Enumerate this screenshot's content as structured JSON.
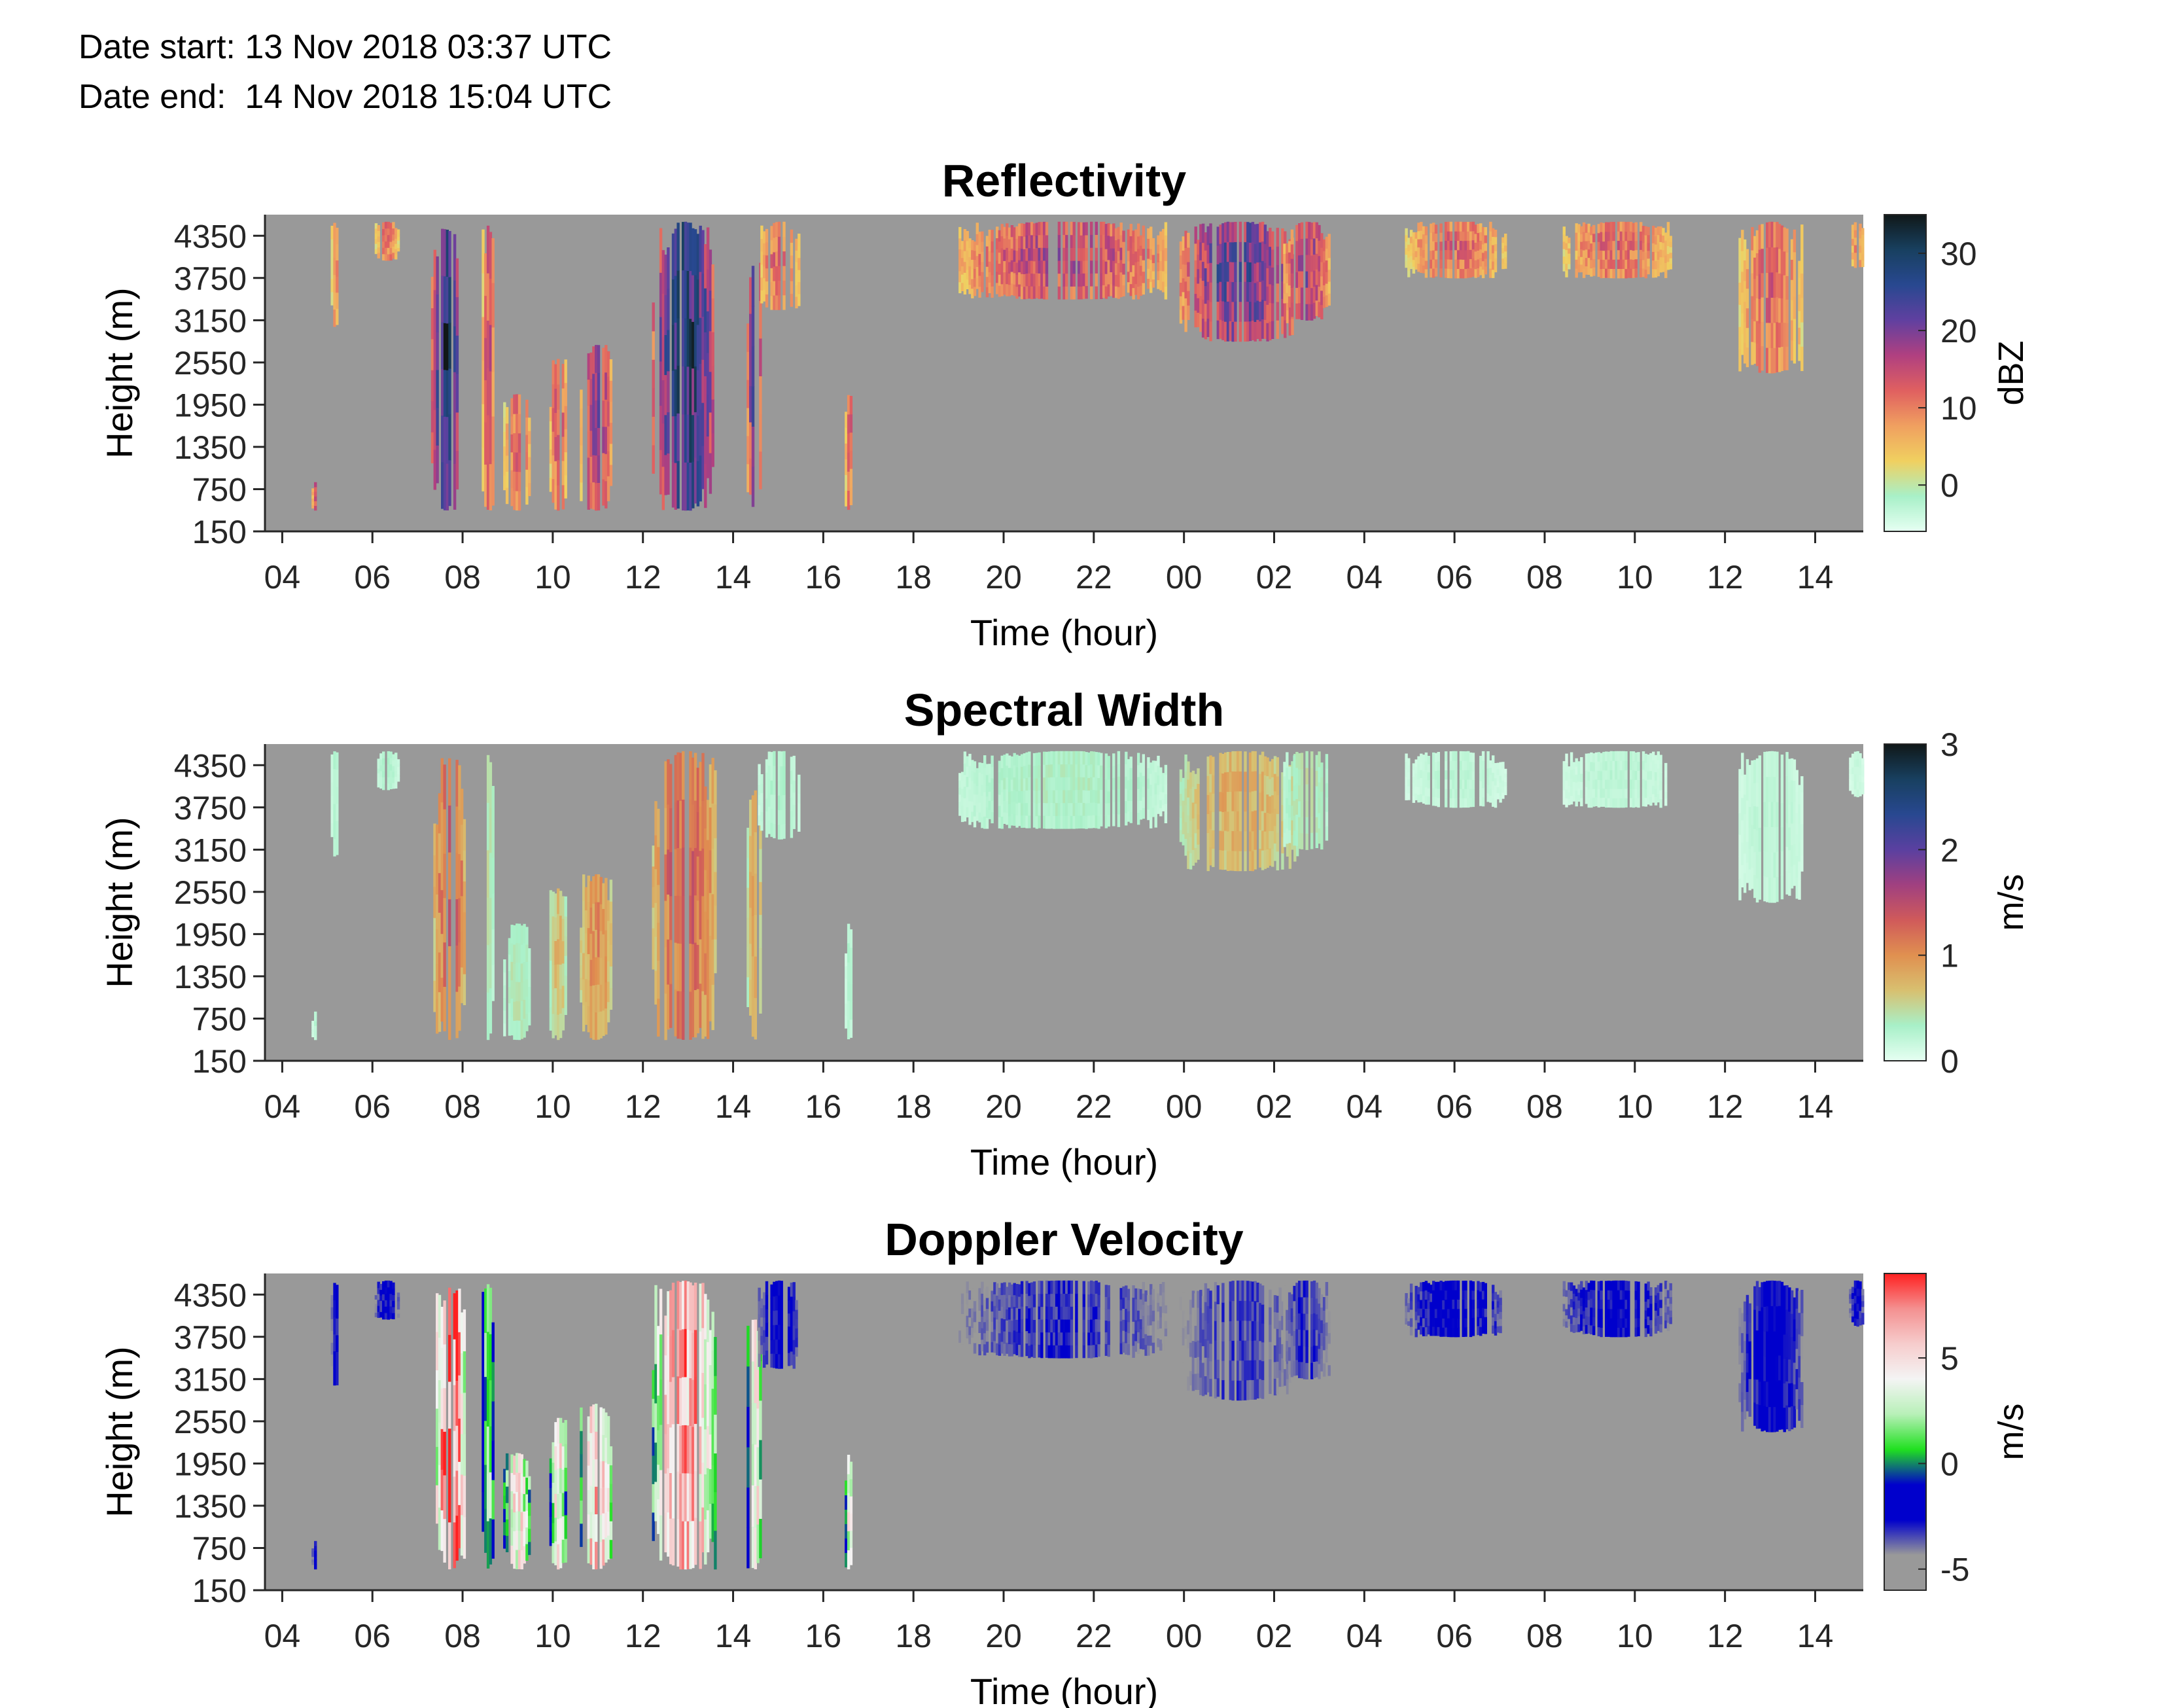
{
  "header": {
    "date_start": "Date start: 13 Nov 2018 03:37 UTC",
    "date_end": "Date end:  14 Nov 2018 15:04 UTC"
  },
  "colors": {
    "background_missing": "#999999",
    "axis": "#262626"
  },
  "chart_data": [
    {
      "type": "heatmap",
      "title": "Reflectivity",
      "xlabel": "Time (hour)",
      "ylabel": "Height (m)",
      "x_ticks": [
        "04",
        "06",
        "08",
        "10",
        "12",
        "14",
        "16",
        "18",
        "20",
        "22",
        "00",
        "02",
        "04",
        "06",
        "08",
        "10",
        "12",
        "14"
      ],
      "xlim_hours": [
        3.617,
        39.067
      ],
      "y_ticks": [
        150,
        750,
        1350,
        1950,
        2550,
        3150,
        3750,
        4350
      ],
      "ylim": [
        150,
        4650
      ],
      "colorbar": {
        "label": "dBZ",
        "ticks": [
          0,
          10,
          20,
          30
        ],
        "range": [
          -6,
          35
        ],
        "stops": [
          "#e6fff2",
          "#a8f0c8",
          "#f0d060",
          "#f0a060",
          "#e06060",
          "#b04080",
          "#6040a0",
          "#284890",
          "#184060",
          "#101818"
        ]
      },
      "features": [
        {
          "t": 4.7,
          "w": 0.1,
          "low": 450,
          "high": 850,
          "level": 0.55
        },
        {
          "t": 5.15,
          "w": 0.15,
          "low": 3050,
          "high": 4550,
          "level": 0.4
        },
        {
          "t": 6.3,
          "w": 0.5,
          "low": 4000,
          "high": 4550,
          "level": 0.45
        },
        {
          "t": 7.6,
          "w": 0.6,
          "low": 450,
          "high": 4450,
          "level": 0.88
        },
        {
          "t": 8.55,
          "w": 0.25,
          "low": 450,
          "high": 4500,
          "level": 0.5
        },
        {
          "t": 9.2,
          "w": 0.6,
          "low": 450,
          "high": 2100,
          "level": 0.45
        },
        {
          "t": 10.1,
          "w": 0.35,
          "low": 450,
          "high": 2600,
          "level": 0.5
        },
        {
          "t": 10.95,
          "w": 0.7,
          "low": 450,
          "high": 2800,
          "level": 0.6
        },
        {
          "t": 12.9,
          "w": 1.4,
          "low": 450,
          "high": 4550,
          "level": 0.85
        },
        {
          "t": 14.45,
          "w": 0.3,
          "low": 450,
          "high": 4000,
          "level": 0.7
        },
        {
          "t": 15.0,
          "w": 0.9,
          "low": 3300,
          "high": 4550,
          "level": 0.45
        },
        {
          "t": 16.55,
          "w": 0.15,
          "low": 450,
          "high": 2100,
          "level": 0.5
        },
        {
          "t": 21.3,
          "w": 4.6,
          "low": 3450,
          "high": 4550,
          "level": 0.55
        },
        {
          "t": 25.2,
          "w": 2.6,
          "low": 2850,
          "high": 4550,
          "level": 0.7
        },
        {
          "t": 26.7,
          "w": 1.0,
          "low": 3150,
          "high": 4550,
          "level": 0.6
        },
        {
          "t": 30.0,
          "w": 2.2,
          "low": 3750,
          "high": 4550,
          "level": 0.45
        },
        {
          "t": 33.6,
          "w": 2.4,
          "low": 3750,
          "high": 4550,
          "level": 0.45
        },
        {
          "t": 37.0,
          "w": 1.4,
          "low": 2400,
          "high": 4550,
          "level": 0.45
        },
        {
          "t": 38.9,
          "w": 0.3,
          "low": 3900,
          "high": 4550,
          "level": 0.4
        }
      ]
    },
    {
      "type": "heatmap",
      "title": "Spectral Width",
      "xlabel": "Time (hour)",
      "ylabel": "Height (m)",
      "x_ticks": [
        "04",
        "06",
        "08",
        "10",
        "12",
        "14",
        "16",
        "18",
        "20",
        "22",
        "00",
        "02",
        "04",
        "06",
        "08",
        "10",
        "12",
        "14"
      ],
      "xlim_hours": [
        3.617,
        39.067
      ],
      "y_ticks": [
        150,
        750,
        1350,
        1950,
        2550,
        3150,
        3750,
        4350
      ],
      "ylim": [
        150,
        4650
      ],
      "colorbar": {
        "label": "m/s",
        "ticks": [
          0,
          1,
          2,
          3
        ],
        "range": [
          0,
          3
        ],
        "stops": [
          "#e6fff2",
          "#a8f0c8",
          "#d8c070",
          "#e09050",
          "#d05a5a",
          "#a04080",
          "#5a40a0",
          "#284890",
          "#184060",
          "#101818"
        ]
      },
      "features": [
        {
          "t": 4.7,
          "w": 0.1,
          "low": 450,
          "high": 850,
          "level": 0.08
        },
        {
          "t": 5.15,
          "w": 0.15,
          "low": 3050,
          "high": 4550,
          "level": 0.1
        },
        {
          "t": 6.3,
          "w": 0.5,
          "low": 4000,
          "high": 4550,
          "level": 0.1
        },
        {
          "t": 7.7,
          "w": 0.7,
          "low": 450,
          "high": 4450,
          "level": 0.45
        },
        {
          "t": 8.55,
          "w": 0.25,
          "low": 450,
          "high": 4500,
          "level": 0.15
        },
        {
          "t": 9.2,
          "w": 0.6,
          "low": 450,
          "high": 2100,
          "level": 0.15
        },
        {
          "t": 10.1,
          "w": 0.35,
          "low": 450,
          "high": 2600,
          "level": 0.25
        },
        {
          "t": 10.95,
          "w": 0.7,
          "low": 450,
          "high": 2800,
          "level": 0.35
        },
        {
          "t": 12.9,
          "w": 1.4,
          "low": 450,
          "high": 4550,
          "level": 0.45
        },
        {
          "t": 14.45,
          "w": 0.3,
          "low": 450,
          "high": 4000,
          "level": 0.3
        },
        {
          "t": 15.0,
          "w": 0.9,
          "low": 3300,
          "high": 4550,
          "level": 0.1
        },
        {
          "t": 16.55,
          "w": 0.15,
          "low": 450,
          "high": 2100,
          "level": 0.1
        },
        {
          "t": 21.3,
          "w": 4.6,
          "low": 3450,
          "high": 4550,
          "level": 0.12
        },
        {
          "t": 25.2,
          "w": 2.6,
          "low": 2850,
          "high": 4550,
          "level": 0.28
        },
        {
          "t": 26.7,
          "w": 1.0,
          "low": 3150,
          "high": 4550,
          "level": 0.15
        },
        {
          "t": 30.0,
          "w": 2.2,
          "low": 3750,
          "high": 4550,
          "level": 0.08
        },
        {
          "t": 33.6,
          "w": 2.4,
          "low": 3750,
          "high": 4550,
          "level": 0.08
        },
        {
          "t": 37.0,
          "w": 1.4,
          "low": 2400,
          "high": 4550,
          "level": 0.08
        },
        {
          "t": 38.9,
          "w": 0.3,
          "low": 3900,
          "high": 4550,
          "level": 0.06
        }
      ]
    },
    {
      "type": "heatmap",
      "title": "Doppler Velocity",
      "xlabel": "Time (hour)",
      "ylabel": "Height (m)",
      "x_ticks": [
        "04",
        "06",
        "08",
        "10",
        "12",
        "14",
        "16",
        "18",
        "20",
        "22",
        "00",
        "02",
        "04",
        "06",
        "08",
        "10",
        "12",
        "14"
      ],
      "xlim_hours": [
        3.617,
        39.067
      ],
      "y_ticks": [
        150,
        750,
        1350,
        1950,
        2550,
        3150,
        3750,
        4350
      ],
      "ylim": [
        150,
        4650
      ],
      "colorbar": {
        "label": "m/s",
        "ticks": [
          -5,
          0,
          5
        ],
        "range": [
          -6,
          9
        ],
        "stops": [
          "#999999",
          "#999999",
          "#0000cc",
          "#0000cc",
          "#20e020",
          "#b8f0b8",
          "#f4f4f4",
          "#f6cccc",
          "#f49090",
          "#ff2020"
        ]
      },
      "features": [
        {
          "t": 4.7,
          "w": 0.1,
          "low": 450,
          "high": 850,
          "level": 0.25
        },
        {
          "t": 5.15,
          "w": 0.15,
          "low": 3050,
          "high": 4550,
          "level": 0.25
        },
        {
          "t": 6.3,
          "w": 0.5,
          "low": 4000,
          "high": 4550,
          "level": 0.25
        },
        {
          "t": 7.7,
          "w": 0.7,
          "low": 450,
          "high": 4450,
          "level": 0.95
        },
        {
          "t": 8.55,
          "w": 0.25,
          "low": 450,
          "high": 4500,
          "level": 0.55
        },
        {
          "t": 9.2,
          "w": 0.6,
          "low": 450,
          "high": 2100,
          "level": 0.7
        },
        {
          "t": 10.1,
          "w": 0.35,
          "low": 450,
          "high": 2600,
          "level": 0.7
        },
        {
          "t": 10.95,
          "w": 0.7,
          "low": 450,
          "high": 2800,
          "level": 0.8
        },
        {
          "t": 12.9,
          "w": 1.4,
          "low": 450,
          "high": 4550,
          "level": 0.85
        },
        {
          "t": 14.45,
          "w": 0.3,
          "low": 450,
          "high": 4000,
          "level": 0.75
        },
        {
          "t": 15.0,
          "w": 0.9,
          "low": 3300,
          "high": 4550,
          "level": 0.25
        },
        {
          "t": 16.55,
          "w": 0.15,
          "low": 450,
          "high": 2100,
          "level": 0.7
        },
        {
          "t": 21.3,
          "w": 4.6,
          "low": 3450,
          "high": 4550,
          "level": 0.2
        },
        {
          "t": 25.2,
          "w": 2.6,
          "low": 2850,
          "high": 4550,
          "level": 0.18
        },
        {
          "t": 26.7,
          "w": 1.0,
          "low": 3150,
          "high": 4550,
          "level": 0.2
        },
        {
          "t": 30.0,
          "w": 2.2,
          "low": 3750,
          "high": 4550,
          "level": 0.25
        },
        {
          "t": 33.6,
          "w": 2.4,
          "low": 3750,
          "high": 4550,
          "level": 0.25
        },
        {
          "t": 37.0,
          "w": 1.4,
          "low": 2400,
          "high": 4550,
          "level": 0.25
        },
        {
          "t": 38.9,
          "w": 0.3,
          "low": 3900,
          "high": 4550,
          "level": 0.25
        }
      ]
    }
  ]
}
